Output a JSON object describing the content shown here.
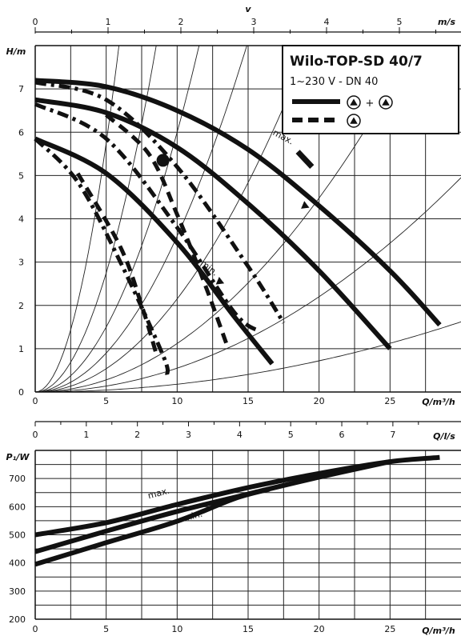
{
  "chart_data": [
    {
      "type": "line",
      "title": "Wilo-TOP-SD 40/7",
      "subtitle": "1~230 V - DN 40",
      "xlabel": "Q/m³/h",
      "ylabel": "H/m",
      "xlim": [
        0,
        30
      ],
      "ylim": [
        0,
        8
      ],
      "x_ticks": [
        0,
        5,
        10,
        15,
        20,
        25
      ],
      "y_ticks": [
        0,
        1,
        2,
        3,
        4,
        5,
        6,
        7
      ],
      "grid": true,
      "top_axis": {
        "label": "v",
        "unit": "m/s",
        "ticks": [
          0,
          1,
          2,
          3,
          4,
          5
        ]
      },
      "legend": {
        "placement": "top-right",
        "entries": [
          {
            "style": "solid",
            "symbols": "▲+▲"
          },
          {
            "style": "dashed",
            "symbols": "▲"
          }
        ]
      },
      "annotations": [
        "max.",
        "min."
      ],
      "series": [
        {
          "style": "solid",
          "x": [
            0,
            5,
            10,
            15,
            20,
            25,
            28.5
          ],
          "y": [
            7.2,
            7.05,
            6.5,
            5.6,
            4.3,
            2.8,
            1.55
          ]
        },
        {
          "style": "solid",
          "x": [
            0,
            5,
            10,
            15,
            20,
            25
          ],
          "y": [
            6.75,
            6.45,
            5.65,
            4.35,
            2.8,
            1.0
          ]
        },
        {
          "style": "solid",
          "x": [
            0,
            5,
            10,
            14,
            16.7
          ],
          "y": [
            5.85,
            5.05,
            3.45,
            1.75,
            0.65
          ]
        },
        {
          "style": "dashdot",
          "x": [
            0,
            5,
            10,
            15,
            17.5
          ],
          "y": [
            7.15,
            6.75,
            5.2,
            2.9,
            1.6
          ]
        },
        {
          "style": "dashdot",
          "x": [
            0,
            5,
            10,
            14,
            15.8
          ],
          "y": [
            6.65,
            5.85,
            3.8,
            1.85,
            1.4
          ]
        },
        {
          "style": "dashdot",
          "x": [
            0,
            3,
            6,
            9,
            9.3
          ],
          "y": [
            5.85,
            4.85,
            3.0,
            0.85,
            0.4
          ]
        },
        {
          "style": "dashed",
          "x": [
            5,
            8,
            10,
            12,
            13.6
          ],
          "y": [
            6.4,
            5.5,
            4.1,
            2.45,
            1.0
          ]
        },
        {
          "style": "dashed",
          "x": [
            3,
            6,
            7.5,
            8.6
          ],
          "y": [
            5.05,
            3.35,
            2.0,
            0.8
          ]
        }
      ],
      "marker": {
        "x": 9,
        "y": 5.35
      },
      "system_curves_k": [
        0.0018,
        0.0055,
        0.0112,
        0.0215,
        0.036,
        0.06,
        0.11,
        0.23
      ]
    },
    {
      "type": "line",
      "xlabel": "Q/m³/h",
      "ylabel": "P₁/W",
      "xlim": [
        0,
        30
      ],
      "ylim": [
        200,
        800
      ],
      "x_ticks": [
        0,
        5,
        10,
        15,
        20,
        25
      ],
      "y_ticks": [
        200,
        300,
        400,
        500,
        600,
        700
      ],
      "grid": true,
      "top_axis": {
        "label": "Q/l/s",
        "ticks": [
          0,
          1,
          2,
          3,
          4,
          5,
          6,
          7
        ]
      },
      "annotations": [
        "max.",
        "min."
      ],
      "series": [
        {
          "style": "solid",
          "x": [
            0,
            5,
            10,
            15,
            20,
            25,
            28.5
          ],
          "y": [
            500,
            543,
            608,
            668,
            718,
            760,
            775
          ]
        },
        {
          "style": "solid",
          "x": [
            0,
            5,
            10,
            15,
            20,
            25
          ],
          "y": [
            440,
            513,
            583,
            645,
            705,
            760
          ]
        },
        {
          "style": "solid",
          "x": [
            0,
            5,
            10,
            14,
            16.5
          ],
          "y": [
            395,
            472,
            548,
            628,
            662
          ]
        }
      ]
    }
  ]
}
